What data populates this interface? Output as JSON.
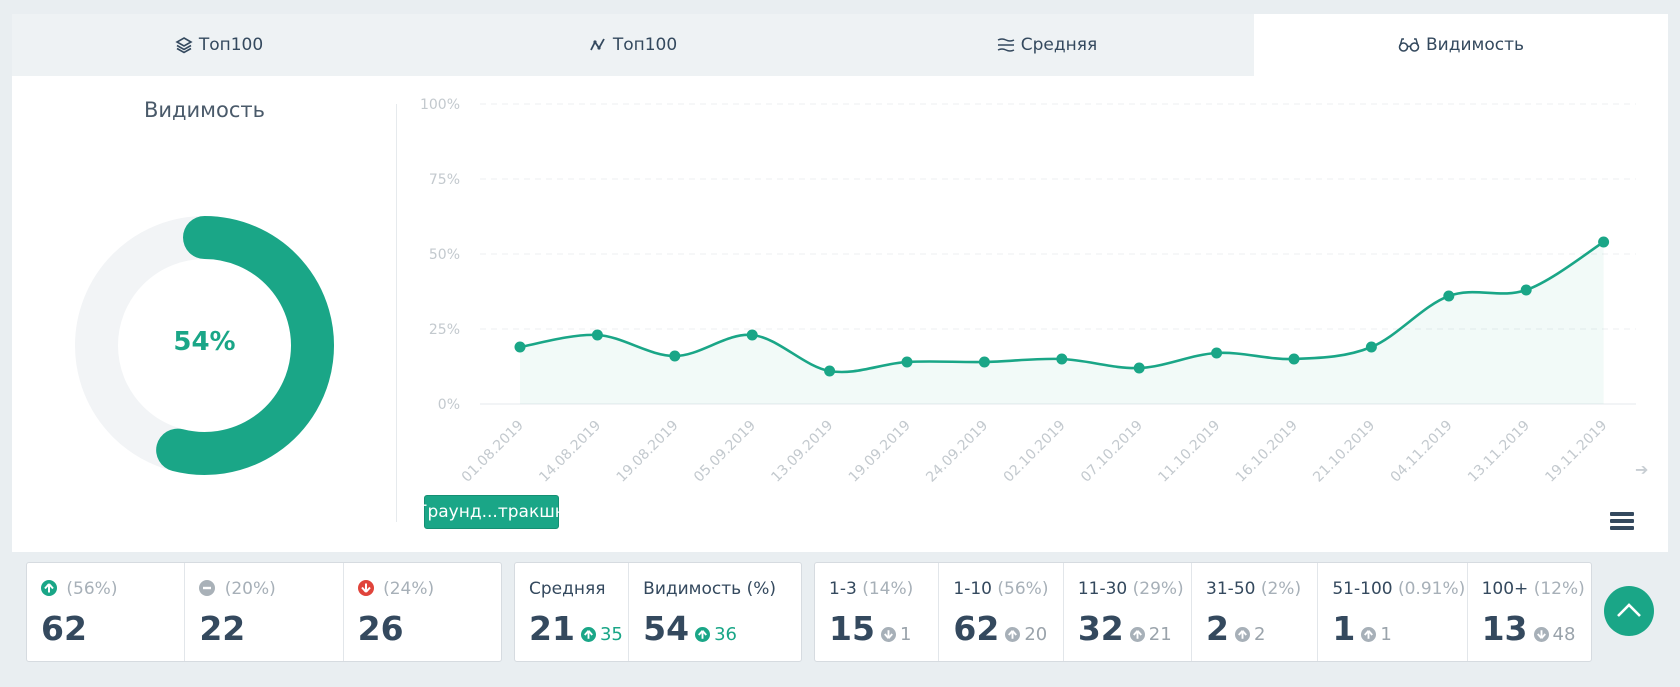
{
  "tabs": [
    {
      "label": "Топ100",
      "icon": "layers-icon"
    },
    {
      "label": "Топ100",
      "icon": "trend-icon"
    },
    {
      "label": "Средняя",
      "icon": "average-icon"
    },
    {
      "label": "Видимость",
      "icon": "glasses-icon"
    }
  ],
  "donut": {
    "title": "Видимость",
    "value": "54%",
    "fraction": 0.54,
    "color": "#1aa687"
  },
  "chart_data": {
    "type": "area",
    "x": [
      "01.08.2019",
      "14.08.2019",
      "19.08.2019",
      "05.09.2019",
      "13.09.2019",
      "19.09.2019",
      "24.09.2019",
      "02.10.2019",
      "07.10.2019",
      "11.10.2019",
      "16.10.2019",
      "21.10.2019",
      "04.11.2019",
      "13.11.2019",
      "19.11.2019"
    ],
    "series": [
      {
        "name": "Граунд...тракшн",
        "values": [
          19,
          23,
          16,
          23,
          11,
          14,
          14,
          15,
          12,
          17,
          15,
          19,
          36,
          38,
          54
        ]
      }
    ],
    "yticks": [
      "100%",
      "75%",
      "50%",
      "25%",
      "0%"
    ],
    "ylim": [
      0,
      100
    ],
    "grid": true,
    "color": "#1aa687"
  },
  "legend_label": "Граунд...тракшн",
  "positions": [
    {
      "icon": "arrow-up-circle-icon",
      "pct": "(56%)",
      "value": "62"
    },
    {
      "icon": "minus-circle-icon",
      "pct": "(20%)",
      "value": "22"
    },
    {
      "icon": "arrow-down-circle-icon",
      "pct": "(24%)",
      "value": "26"
    }
  ],
  "metrics": [
    {
      "label": "Средняя",
      "value": "21",
      "delta": "35"
    },
    {
      "label": "Видимость (%)",
      "value": "54",
      "delta": "36"
    }
  ],
  "ranges": [
    {
      "label": "1-3",
      "pct": "(14%)",
      "value": "15",
      "delta": "1",
      "dir": "down"
    },
    {
      "label": "1-10",
      "pct": "(56%)",
      "value": "62",
      "delta": "20",
      "dir": "up"
    },
    {
      "label": "11-30",
      "pct": "(29%)",
      "value": "32",
      "delta": "21",
      "dir": "up"
    },
    {
      "label": "31-50",
      "pct": "(2%)",
      "value": "2",
      "delta": "2",
      "dir": "up"
    },
    {
      "label": "51-100",
      "pct": "(0.91%)",
      "value": "1",
      "delta": "1",
      "dir": "up"
    },
    {
      "label": "100+",
      "pct": "(12%)",
      "value": "13",
      "delta": "48",
      "dir": "down"
    }
  ]
}
